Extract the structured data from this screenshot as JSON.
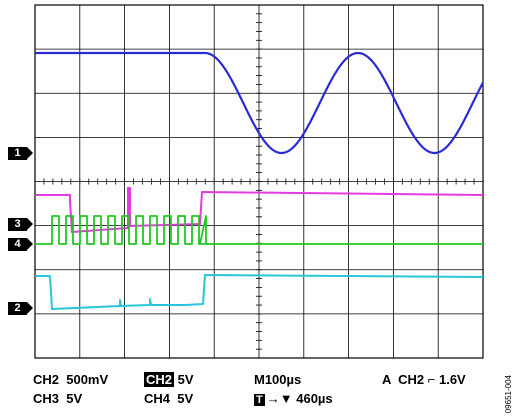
{
  "markers": [
    {
      "label": "1"
    },
    {
      "label": "3"
    },
    {
      "label": "4"
    },
    {
      "label": "2"
    }
  ],
  "readout": {
    "row1": {
      "ch2": "CH2  500mV",
      "ch2_box": "CH2",
      "ch2_box_scale": "5V",
      "timebase": "M100µs",
      "trigger_label": "A  CH2",
      "trigger_level": "1.6V"
    },
    "row2": {
      "ch3": "CH3  5V",
      "ch4": "CH4  5V",
      "trigger_icon": "T",
      "trigger_pos": "460µs"
    }
  },
  "figure_id": "09651-004",
  "colors": {
    "ch1_analog": "#2b2bd6",
    "ch3_magenta": "#e43be0",
    "ch4_green": "#22c922",
    "ch2_cyan": "#28c6d8",
    "grid": "#000000"
  }
}
